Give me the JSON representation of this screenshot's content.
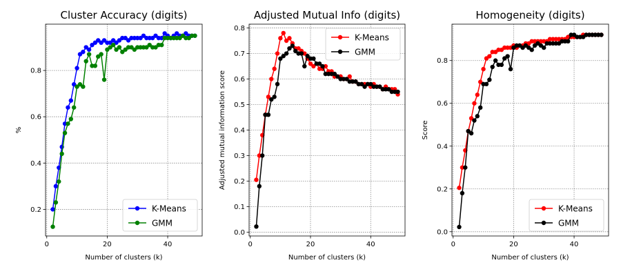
{
  "chart_data": [
    {
      "type": "line",
      "title": "Cluster Accuracy (digits)",
      "xlabel": "Number of clusters (k)",
      "ylabel": "%",
      "xlim": [
        -0.4,
        51.4
      ],
      "ylim": [
        0.085,
        1.0
      ],
      "xticks": [
        0,
        20,
        40
      ],
      "yticks": [
        0.2,
        0.4,
        0.6,
        0.8
      ],
      "grid": true,
      "legend": "lower right",
      "x": [
        2,
        3,
        4,
        5,
        6,
        7,
        8,
        9,
        10,
        11,
        12,
        13,
        14,
        15,
        16,
        17,
        18,
        19,
        20,
        21,
        22,
        23,
        24,
        25,
        26,
        27,
        28,
        29,
        30,
        31,
        32,
        33,
        34,
        35,
        36,
        37,
        38,
        39,
        40,
        41,
        42,
        43,
        44,
        45,
        46,
        47,
        48,
        49
      ],
      "series": [
        {
          "name": "K-Means",
          "color": "#0000ff",
          "values": [
            0.2,
            0.3,
            0.38,
            0.47,
            0.57,
            0.64,
            0.67,
            0.74,
            0.81,
            0.87,
            0.88,
            0.9,
            0.89,
            0.91,
            0.92,
            0.93,
            0.92,
            0.93,
            0.92,
            0.92,
            0.93,
            0.92,
            0.93,
            0.94,
            0.94,
            0.93,
            0.94,
            0.94,
            0.94,
            0.94,
            0.95,
            0.94,
            0.94,
            0.94,
            0.95,
            0.94,
            0.94,
            0.96,
            0.95,
            0.94,
            0.95,
            0.96,
            0.95,
            0.95,
            0.96,
            0.95,
            0.95,
            0.95
          ]
        },
        {
          "name": "GMM",
          "color": "#008000",
          "values": [
            0.125,
            0.23,
            0.32,
            0.44,
            0.53,
            0.57,
            0.59,
            0.64,
            0.73,
            0.74,
            0.73,
            0.84,
            0.87,
            0.82,
            0.82,
            0.86,
            0.87,
            0.76,
            0.89,
            0.9,
            0.91,
            0.89,
            0.9,
            0.88,
            0.89,
            0.9,
            0.9,
            0.89,
            0.9,
            0.9,
            0.9,
            0.9,
            0.91,
            0.9,
            0.9,
            0.91,
            0.91,
            0.94,
            0.94,
            0.94,
            0.94,
            0.94,
            0.94,
            0.95,
            0.94,
            0.94,
            0.95,
            0.95
          ]
        }
      ]
    },
    {
      "type": "line",
      "title": "Adjusted Mutual Info (digits)",
      "xlabel": "Number of clusters (k)",
      "ylabel": "Adjusted mutual information score",
      "xlim": [
        -0.4,
        51.4
      ],
      "ylim": [
        -0.015,
        0.815
      ],
      "xticks": [
        0,
        20,
        40
      ],
      "yticks": [
        0.0,
        0.1,
        0.2,
        0.3,
        0.4,
        0.5,
        0.6,
        0.7,
        0.8
      ],
      "grid": true,
      "legend": "upper right",
      "x": [
        2,
        3,
        4,
        5,
        6,
        7,
        8,
        9,
        10,
        11,
        12,
        13,
        14,
        15,
        16,
        17,
        18,
        19,
        20,
        21,
        22,
        23,
        24,
        25,
        26,
        27,
        28,
        29,
        30,
        31,
        32,
        33,
        34,
        35,
        36,
        37,
        38,
        39,
        40,
        41,
        42,
        43,
        44,
        45,
        46,
        47,
        48,
        49
      ],
      "series": [
        {
          "name": "K-Means",
          "color": "#ff0000",
          "values": [
            0.205,
            0.3,
            0.38,
            0.46,
            0.53,
            0.6,
            0.64,
            0.7,
            0.76,
            0.78,
            0.75,
            0.76,
            0.74,
            0.72,
            0.72,
            0.71,
            0.7,
            0.68,
            0.66,
            0.65,
            0.66,
            0.64,
            0.64,
            0.65,
            0.63,
            0.63,
            0.61,
            0.61,
            0.61,
            0.6,
            0.6,
            0.61,
            0.59,
            0.59,
            0.58,
            0.58,
            0.58,
            0.58,
            0.57,
            0.58,
            0.57,
            0.57,
            0.56,
            0.57,
            0.56,
            0.56,
            0.56,
            0.54
          ]
        },
        {
          "name": "GMM",
          "color": "#000000",
          "values": [
            0.022,
            0.18,
            0.3,
            0.46,
            0.46,
            0.52,
            0.53,
            0.58,
            0.68,
            0.69,
            0.7,
            0.72,
            0.73,
            0.71,
            0.7,
            0.7,
            0.65,
            0.69,
            0.68,
            0.68,
            0.66,
            0.66,
            0.65,
            0.62,
            0.62,
            0.62,
            0.62,
            0.61,
            0.6,
            0.6,
            0.6,
            0.59,
            0.59,
            0.59,
            0.58,
            0.58,
            0.57,
            0.58,
            0.58,
            0.57,
            0.57,
            0.57,
            0.56,
            0.56,
            0.56,
            0.55,
            0.55,
            0.55
          ]
        }
      ]
    },
    {
      "type": "line",
      "title": "Homogeneity (digits)",
      "xlabel": "Number of clusters (k)",
      "ylabel": "Score",
      "xlim": [
        -0.4,
        51.4
      ],
      "ylim": [
        -0.02,
        0.97
      ],
      "xticks": [
        0,
        20,
        40
      ],
      "yticks": [
        0.0,
        0.2,
        0.4,
        0.6,
        0.8
      ],
      "grid": true,
      "legend": "lower right",
      "x": [
        2,
        3,
        4,
        5,
        6,
        7,
        8,
        9,
        10,
        11,
        12,
        13,
        14,
        15,
        16,
        17,
        18,
        19,
        20,
        21,
        22,
        23,
        24,
        25,
        26,
        27,
        28,
        29,
        30,
        31,
        32,
        33,
        34,
        35,
        36,
        37,
        38,
        39,
        40,
        41,
        42,
        43,
        44,
        45,
        46,
        47,
        48,
        49
      ],
      "series": [
        {
          "name": "K-Means",
          "color": "#ff0000",
          "values": [
            0.205,
            0.3,
            0.38,
            0.47,
            0.53,
            0.6,
            0.64,
            0.7,
            0.76,
            0.81,
            0.82,
            0.84,
            0.84,
            0.85,
            0.85,
            0.86,
            0.86,
            0.86,
            0.87,
            0.86,
            0.87,
            0.87,
            0.88,
            0.88,
            0.89,
            0.89,
            0.89,
            0.89,
            0.89,
            0.89,
            0.9,
            0.9,
            0.9,
            0.9,
            0.9,
            0.9,
            0.91,
            0.91,
            0.91,
            0.91,
            0.91,
            0.92,
            0.92,
            0.92,
            0.92,
            0.92,
            0.92,
            0.92
          ]
        },
        {
          "name": "GMM",
          "color": "#000000",
          "values": [
            0.022,
            0.18,
            0.3,
            0.47,
            0.46,
            0.52,
            0.54,
            0.58,
            0.69,
            0.69,
            0.71,
            0.77,
            0.8,
            0.78,
            0.78,
            0.81,
            0.82,
            0.76,
            0.86,
            0.87,
            0.87,
            0.86,
            0.87,
            0.86,
            0.85,
            0.87,
            0.88,
            0.87,
            0.86,
            0.88,
            0.88,
            0.88,
            0.88,
            0.88,
            0.89,
            0.89,
            0.89,
            0.92,
            0.92,
            0.91,
            0.91,
            0.91,
            0.92,
            0.92,
            0.92,
            0.92,
            0.92,
            0.92
          ]
        }
      ]
    }
  ]
}
